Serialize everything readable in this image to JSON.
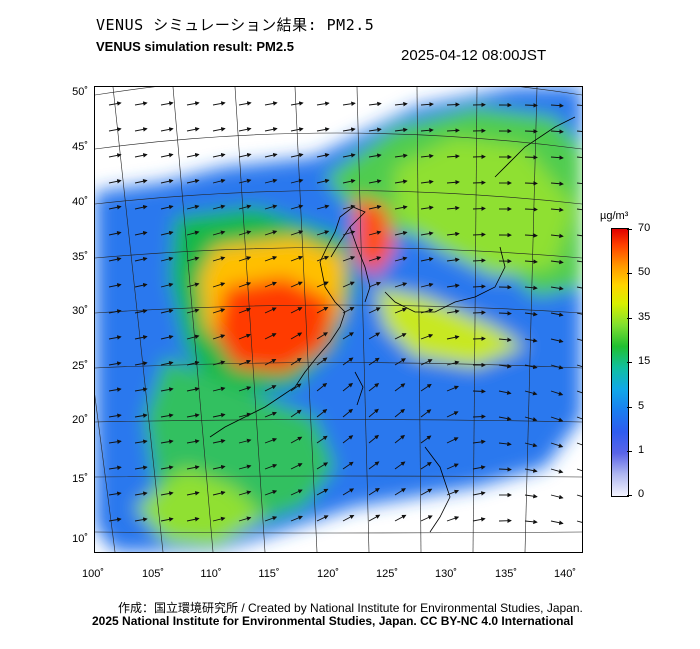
{
  "header": {
    "title_jp": "VENUS シミュレーション結果: PM2.5",
    "title_en": "VENUS simulation result: PM2.5",
    "timestamp": "2025-04-12 08:00JST"
  },
  "map": {
    "lat_labels": [
      "50˚",
      "45˚",
      "40˚",
      "35˚",
      "30˚",
      "25˚",
      "20˚",
      "15˚",
      "10˚"
    ],
    "lon_labels": [
      "100˚",
      "105˚",
      "110˚",
      "115˚",
      "120˚",
      "125˚",
      "130˚",
      "135˚",
      "140˚"
    ],
    "lat_range": [
      9,
      51
    ],
    "lon_range": [
      100,
      142
    ]
  },
  "colorbar": {
    "unit": "µg/m³",
    "ticks": [
      "70",
      "50",
      "35",
      "15",
      "5",
      "1",
      "0"
    ],
    "colors": [
      "#e00000",
      "#ff9a00",
      "#d8f000",
      "#20c030",
      "#10a8e8",
      "#2e5cf0",
      "#f4f4ff"
    ]
  },
  "footer": {
    "credit_jp": "作成：国立環境研究所 / Created by National Institute for Environmental Studies, Japan.",
    "credit_en": "2025 National Institute for Environmental Studies, Japan. CC BY-NC 4.0 International"
  }
}
